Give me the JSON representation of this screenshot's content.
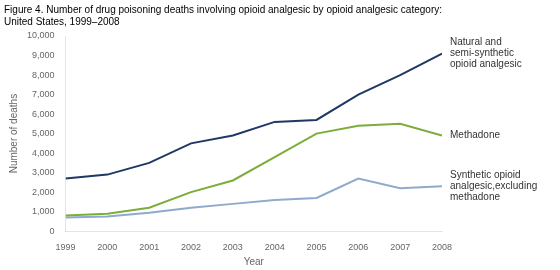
{
  "chart_data": {
    "type": "line",
    "title": [
      "Figure 4. Number of drug poisoning deaths involving opioid analgesic by opioid analgesic category:",
      "United States, 1999–2008"
    ],
    "x_label": "Year",
    "y_label": "Number of deaths",
    "x": [
      1999,
      2000,
      2001,
      2002,
      2003,
      2004,
      2005,
      2006,
      2007,
      2008
    ],
    "series": [
      {
        "name": "Natural and\nsemi-synthetic\nopioid analgesic",
        "color": "#1f3864",
        "values": [
          2700,
          2900,
          3500,
          4500,
          4900,
          5600,
          5700,
          7000,
          8000,
          9100
        ]
      },
      {
        "name": "Methadone",
        "color": "#7cad3a",
        "values": [
          800,
          900,
          1200,
          2000,
          2600,
          3800,
          5000,
          5400,
          5500,
          4900
        ]
      },
      {
        "name": "Synthetic opioid\nanalgesic,excluding\nmethadone",
        "color": "#8eaacc",
        "values": [
          700,
          750,
          950,
          1200,
          1400,
          1600,
          1700,
          2700,
          2200,
          2300
        ]
      }
    ],
    "xlim": [
      1999,
      2008
    ],
    "xticks": [
      1999,
      2000,
      2001,
      2002,
      2003,
      2004,
      2005,
      2006,
      2007,
      2008
    ],
    "ylim": [
      0,
      10000
    ],
    "yticks": [
      0,
      {
        "value": 1000,
        "label": "1,000"
      },
      {
        "value": 2000,
        "label": "2,000"
      },
      {
        "value": 3000,
        "label": "3,000"
      },
      {
        "value": 4000,
        "label": "4,000"
      },
      {
        "value": 5000,
        "label": "5,000"
      },
      {
        "value": 6000,
        "label": "6,000"
      },
      {
        "value": 7000,
        "label": "7,000"
      },
      {
        "value": 8000,
        "label": "8,000"
      },
      {
        "value": 9000,
        "label": "9,000"
      },
      {
        "value": 10000,
        "label": "10,000"
      }
    ],
    "grid": false
  }
}
